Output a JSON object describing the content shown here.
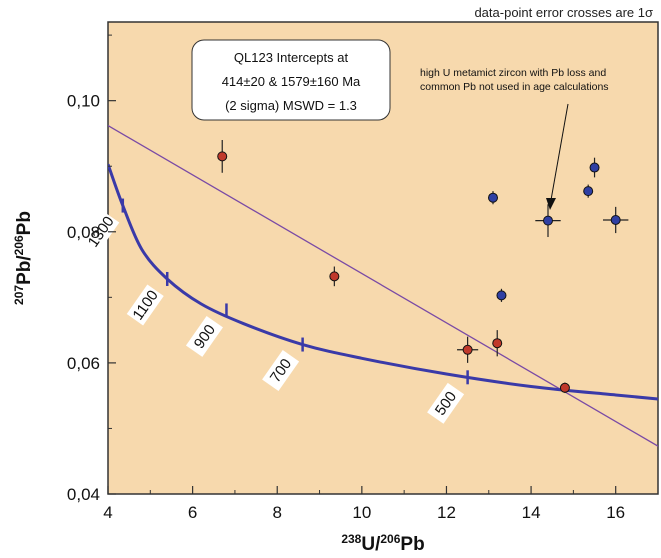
{
  "header_note": "data-point error crosses are 1σ",
  "colors": {
    "plot_bg": "#f7d9ad",
    "concordia": "#3a3aa8",
    "discordia": "#7a4aa5",
    "red_points": "#c0392b",
    "blue_points": "#2f3fa3",
    "box_fill": "#ffffff"
  },
  "chart_data": {
    "type": "scatter",
    "xlabel": "238U/206Pb",
    "ylabel": "207Pb/206Pb",
    "xlim": [
      4,
      17
    ],
    "ylim": [
      0.04,
      0.112
    ],
    "x_ticks": [
      4,
      6,
      8,
      10,
      12,
      14,
      16
    ],
    "y_ticks": [
      0.04,
      0.06,
      0.08,
      0.1
    ],
    "y_tick_labels": [
      "0,04",
      "0,06",
      "0,08",
      "0,10"
    ],
    "intercept_box": [
      "QL123 Intercepts    at",
      "414±20   & 1579±160 Ma",
      "(2 sigma) MSWD    = 1.3"
    ],
    "annotation": [
      "high U metamict zircon with Pb loss and",
      "common Pb not used in age calculations"
    ],
    "concordia_curve": {
      "x": [
        4.0,
        4.35,
        4.8,
        5.4,
        6.2,
        7.2,
        8.6,
        10.0,
        12.0,
        14.0,
        16.0,
        17.0
      ],
      "y": [
        0.0903,
        0.084,
        0.0773,
        0.0728,
        0.069,
        0.066,
        0.0628,
        0.0607,
        0.0583,
        0.0564,
        0.0551,
        0.0545
      ]
    },
    "concordia_labels": [
      {
        "age": "1300",
        "x": 4.35,
        "y": 0.084
      },
      {
        "age": "1100",
        "x": 5.4,
        "y": 0.0728
      },
      {
        "age": "900",
        "x": 6.8,
        "y": 0.068
      },
      {
        "age": "700",
        "x": 8.6,
        "y": 0.0628
      },
      {
        "age": "500",
        "x": 12.5,
        "y": 0.0578
      }
    ],
    "discordia_line": {
      "x": [
        4.0,
        17.0
      ],
      "y": [
        0.0962,
        0.0473
      ]
    },
    "series": [
      {
        "color": "red",
        "x": [
          6.7,
          9.35,
          12.5,
          13.2,
          14.8
        ],
        "y": [
          0.0915,
          0.0732,
          0.062,
          0.063,
          0.0562
        ],
        "yerr": [
          0.0025,
          0.0015,
          0.002,
          0.002,
          0.0008
        ],
        "xerr": [
          0.0,
          0.05,
          0.25,
          0.05,
          0.05
        ]
      },
      {
        "color": "blue",
        "x": [
          13.1,
          13.3,
          14.4,
          15.35,
          15.5,
          16.0
        ],
        "y": [
          0.0852,
          0.0703,
          0.0817,
          0.0862,
          0.0898,
          0.0818
        ],
        "yerr": [
          0.001,
          0.001,
          0.0025,
          0.001,
          0.0015,
          0.002
        ],
        "xerr": [
          0.1,
          0.05,
          0.3,
          0.1,
          0.1,
          0.3
        ]
      }
    ]
  }
}
